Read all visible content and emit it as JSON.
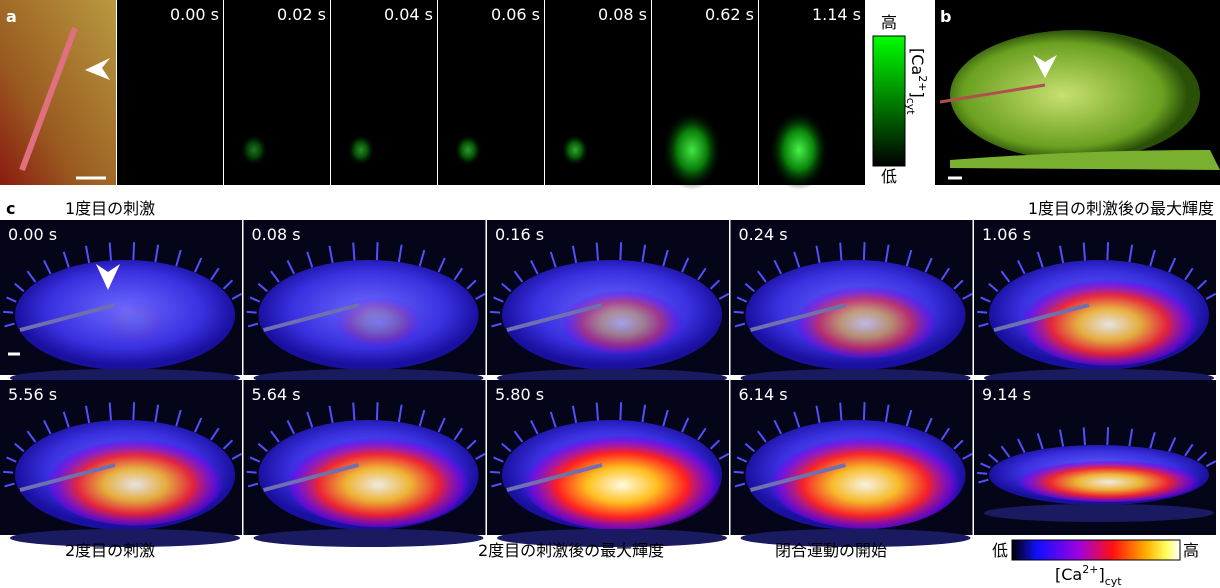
{
  "panel_a": {
    "label": "a",
    "timestamps": [
      "0.00 s",
      "0.02 s",
      "0.04 s",
      "0.06 s",
      "0.08 s",
      "0.62 s",
      "1.14 s"
    ],
    "colorbar": {
      "high": "高",
      "low": "低",
      "label": {
        "base": "[Ca",
        "sup": "2+",
        "close": "]",
        "sub": "cyt"
      }
    }
  },
  "panel_b": {
    "label": "b"
  },
  "panel_c": {
    "label": "c",
    "annotations_top": {
      "left": "1度目の刺激",
      "right": "1度目の刺激後の最大輝度"
    },
    "row1": [
      "0.00 s",
      "0.08 s",
      "0.16 s",
      "0.24 s",
      "1.06 s"
    ],
    "row2": [
      "5.56 s",
      "5.64 s",
      "5.80 s",
      "6.14 s",
      "9.14 s"
    ],
    "annotations_bottom": [
      "2度目の刺激",
      "2度目の刺激後の最大輝度",
      "閉合運動の開始"
    ],
    "colorbar": {
      "low": "低",
      "high": "高",
      "label": {
        "base": "[Ca",
        "sup": "2+",
        "close": "]",
        "sub": "cyt"
      }
    }
  }
}
